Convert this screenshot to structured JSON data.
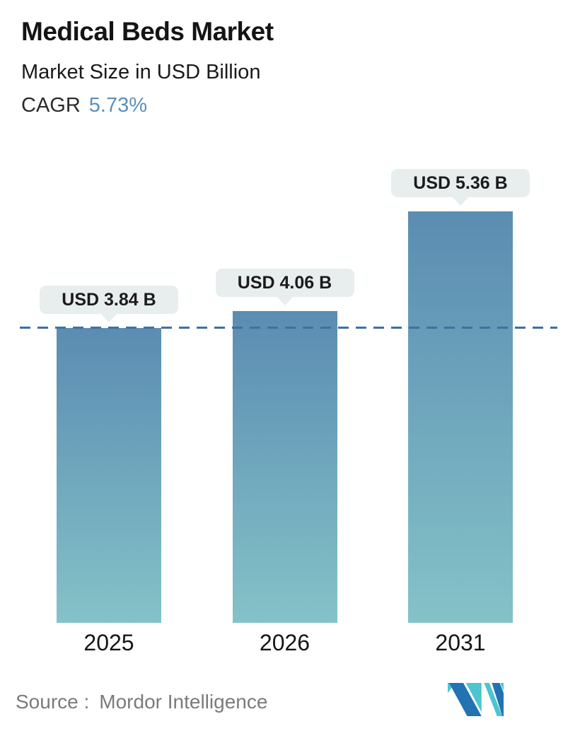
{
  "header": {
    "title": "Medical Beds Market",
    "subtitle": "Market Size in USD Billion",
    "cagr_label": "CAGR",
    "cagr_value": "5.73%"
  },
  "chart_data": {
    "type": "bar",
    "title": "Medical Beds Market",
    "subtitle": "Market Size in USD Billion",
    "unit": "USD Billion",
    "cagr_percent": 5.73,
    "categories": [
      "2025",
      "2026",
      "2031"
    ],
    "values": [
      3.84,
      4.06,
      5.36
    ],
    "value_labels": [
      "USD 3.84 B",
      "USD 4.06 B",
      "USD 5.36 B"
    ],
    "ylim": [
      0,
      5.5
    ],
    "grid": false,
    "legend": "none",
    "reference_line": {
      "value": 3.84,
      "style": "dashed",
      "color": "#3f719e"
    },
    "colors": {
      "bar_top": "#5b8cb2",
      "bar_bottom": "#84c2c8",
      "label_bubble_bg": "#e8edee",
      "label_text": "#1b1b1b",
      "axis_label": "#161616"
    }
  },
  "footer": {
    "source_label": "Source :",
    "source_name": "Mordor Intelligence",
    "logo": "mordor-intelligence-logo",
    "logo_colors": {
      "teal": "#4cc5d0",
      "blue": "#2273b2"
    }
  },
  "colors": {
    "background": "#ffffff",
    "title_text": "#141414",
    "cagr_accent": "#5b8fbe",
    "source_text": "#7b7b7b"
  }
}
